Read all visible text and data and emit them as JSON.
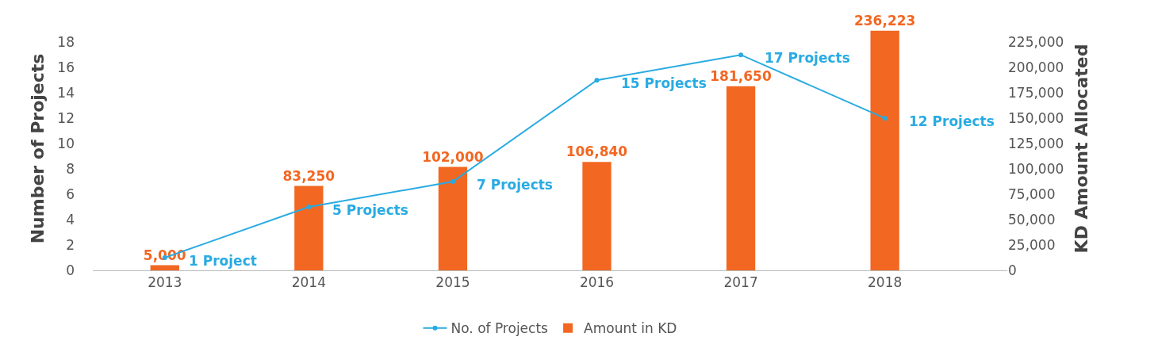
{
  "chart_data": {
    "type": "bar",
    "categories": [
      "2013",
      "2014",
      "2015",
      "2016",
      "2017",
      "2018"
    ],
    "ylabel": "Number of Projects",
    "y2label": "KD Amount Allocated",
    "ylim": [
      0,
      19.2
    ],
    "yticks": [
      0,
      2,
      4,
      6,
      8,
      10,
      12,
      14,
      16,
      18
    ],
    "y2lim": [
      0,
      240000
    ],
    "y2ticks": [
      {
        "value": 0,
        "label": "0"
      },
      {
        "value": 25000,
        "label": "25,000"
      },
      {
        "value": 50000,
        "label": "50,000"
      },
      {
        "value": 75000,
        "label": "75,000"
      },
      {
        "value": 100000,
        "label": "100,000"
      },
      {
        "value": 125000,
        "label": "125,000"
      },
      {
        "value": 150000,
        "label": "150,000"
      },
      {
        "value": 175000,
        "label": "175,000"
      },
      {
        "value": 200000,
        "label": "200,000"
      },
      {
        "value": 225000,
        "label": "225,000"
      }
    ],
    "grid": false,
    "legend": "bottom",
    "marker": "circle",
    "line_style": "solid",
    "series": [
      {
        "name": "No. of Projects",
        "type": "line",
        "color": "#29abe2",
        "values": [
          1,
          5,
          7,
          15,
          17,
          12
        ],
        "value_labels": [
          "1 Project",
          "5 Projects",
          "7 Projects",
          "15 Projects",
          "17 Projects",
          "12 Projects"
        ]
      },
      {
        "name": "Amount in KD",
        "axis": "y2",
        "color": "#f26722",
        "values": [
          5000,
          83250,
          102000,
          106840,
          181650,
          236223
        ],
        "value_labels": [
          "5,000",
          "83,250",
          "102,000",
          "106,840",
          "181,650",
          "236,223"
        ]
      }
    ]
  }
}
